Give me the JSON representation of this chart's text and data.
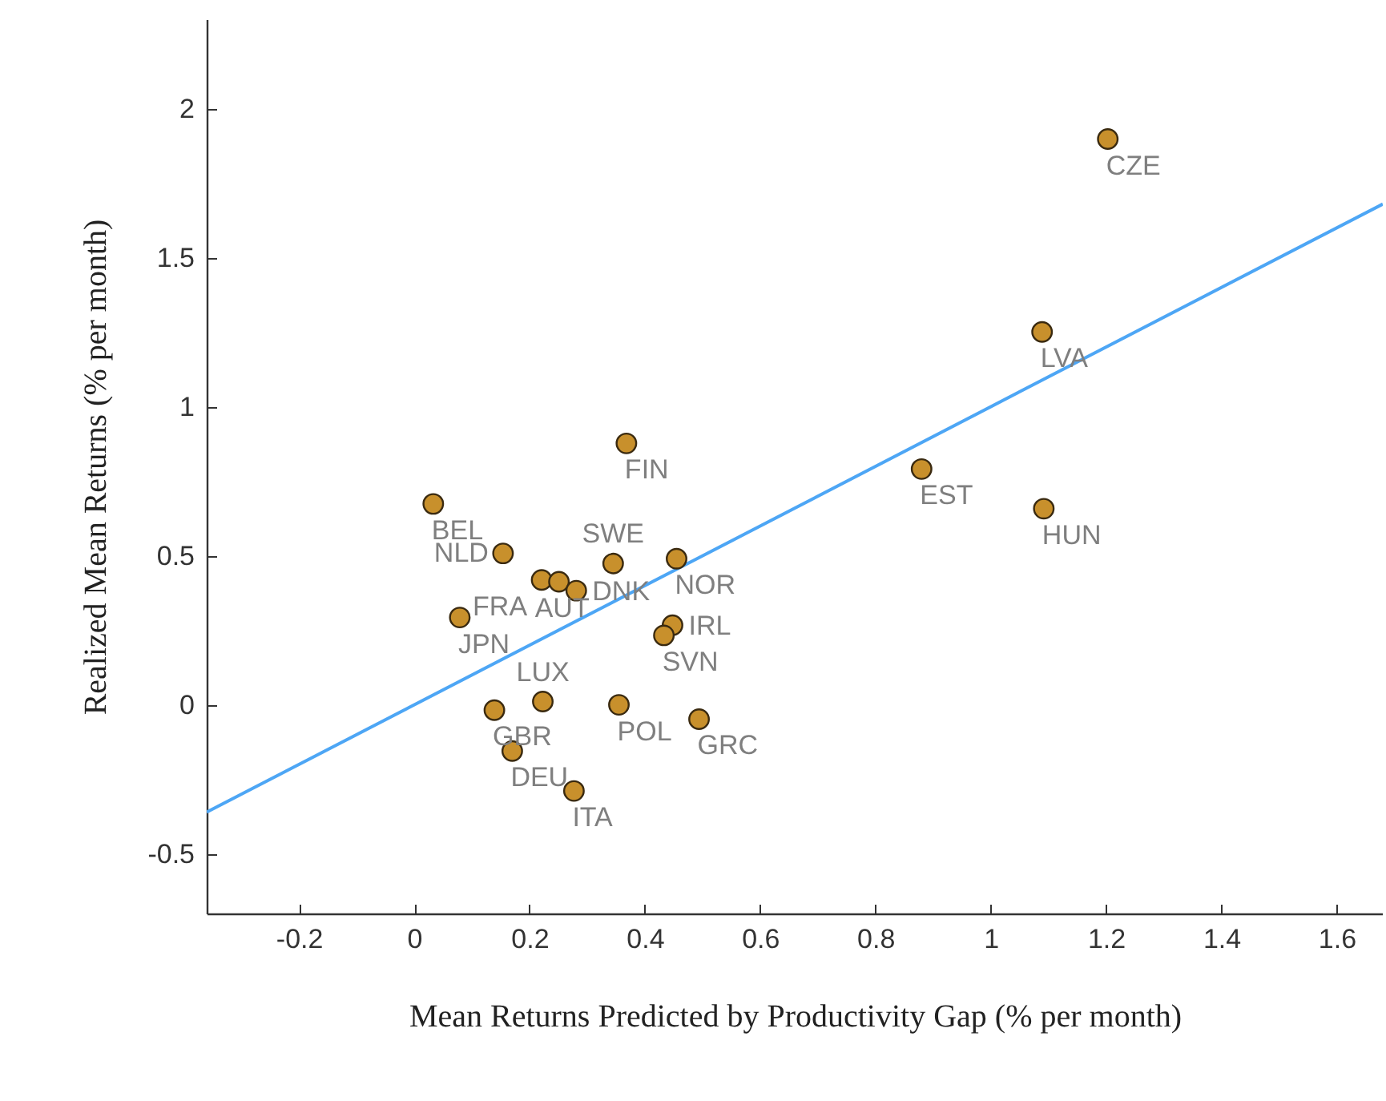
{
  "chart_data": {
    "type": "scatter",
    "xlabel": "Mean Returns Predicted by Productivity Gap (% per month)",
    "ylabel": "Realized Mean Returns (% per month)",
    "xlim": [
      -0.36,
      1.68
    ],
    "ylim": [
      -0.7,
      2.3
    ],
    "xticks": [
      -0.2,
      0,
      0.2,
      0.4,
      0.6,
      0.8,
      1,
      1.2,
      1.4,
      1.6
    ],
    "yticks": [
      -0.5,
      0,
      0.5,
      1,
      1.5,
      2
    ],
    "grid": false,
    "marker": "circle",
    "series": [
      {
        "color": "#c8902c",
        "x": [
          1.203,
          1.089,
          0.88,
          1.092,
          0.368,
          0.033,
          0.154,
          0.221,
          0.251,
          0.281,
          0.345,
          0.455,
          0.448,
          0.433,
          0.079,
          0.139,
          0.223,
          0.355,
          0.494,
          0.17,
          0.277
        ],
        "values": [
          1.898,
          1.251,
          0.791,
          0.658,
          0.877,
          0.674,
          0.508,
          0.419,
          0.413,
          0.383,
          0.474,
          0.49,
          0.267,
          0.233,
          0.293,
          -0.018,
          0.011,
          0.0,
          -0.048,
          -0.155,
          -0.289
        ]
      },
      {
        "type": "line",
        "marker": "none",
        "color": "#4da6f5",
        "x": [
          -0.36,
          1.68
        ],
        "values": [
          -0.36,
          1.68
        ]
      }
    ],
    "annotations": [
      {
        "text": "CZE",
        "x": 1.203,
        "y": 1.898
      },
      {
        "text": "LVA",
        "x": 1.089,
        "y": 1.251
      },
      {
        "text": "EST",
        "x": 0.88,
        "y": 0.791
      },
      {
        "text": "HUN",
        "x": 1.092,
        "y": 0.658
      },
      {
        "text": "FIN",
        "x": 0.368,
        "y": 0.877
      },
      {
        "text": "BEL",
        "x": 0.033,
        "y": 0.674
      },
      {
        "text": "NLD",
        "x": 0.154,
        "y": 0.508
      },
      {
        "text": "FRA",
        "x": 0.221,
        "y": 0.419
      },
      {
        "text": "AUT",
        "x": 0.251,
        "y": 0.413
      },
      {
        "text": "DNK",
        "x": 0.281,
        "y": 0.383
      },
      {
        "text": "SWE",
        "x": 0.345,
        "y": 0.474
      },
      {
        "text": "NOR",
        "x": 0.455,
        "y": 0.49
      },
      {
        "text": "IRL",
        "x": 0.448,
        "y": 0.267
      },
      {
        "text": "SVN",
        "x": 0.433,
        "y": 0.233
      },
      {
        "text": "JPN",
        "x": 0.079,
        "y": 0.293
      },
      {
        "text": "GBR",
        "x": 0.139,
        "y": -0.018
      },
      {
        "text": "LUX",
        "x": 0.223,
        "y": 0.011
      },
      {
        "text": "POL",
        "x": 0.355,
        "y": 0.0
      },
      {
        "text": "GRC",
        "x": 0.494,
        "y": -0.048
      },
      {
        "text": "DEU",
        "x": 0.17,
        "y": -0.155
      },
      {
        "text": "ITA",
        "x": 0.277,
        "y": -0.289
      }
    ]
  }
}
